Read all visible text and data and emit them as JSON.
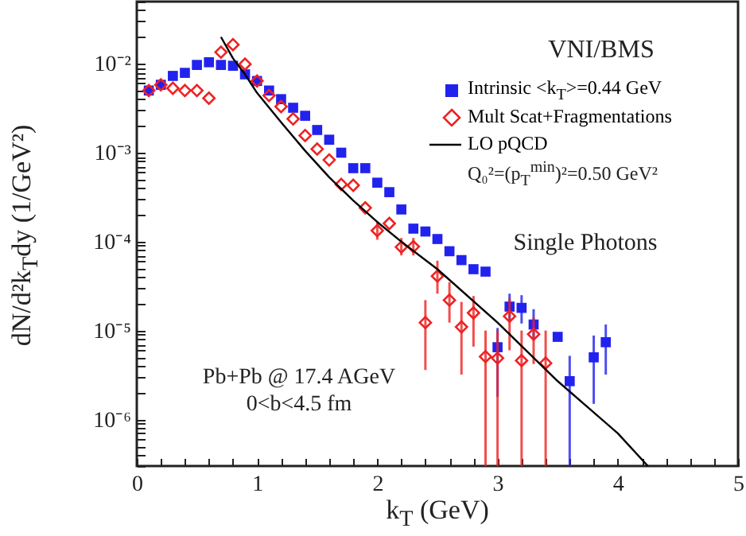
{
  "chart_data": {
    "type": "scatter",
    "xlabel": "k$_{T}$ (GeV)",
    "ylabel": "dN/d²k$_{T}$dy (1/GeV²)",
    "log": "y",
    "xlim": [
      0,
      5
    ],
    "xticks": [
      0,
      {
        "value": 0.2,
        "label": null
      },
      {
        "value": 0.4,
        "label": null
      },
      {
        "value": 0.6,
        "label": null
      },
      {
        "value": 0.8,
        "label": null
      },
      1,
      {
        "value": 1.2,
        "label": null
      },
      {
        "value": 1.4,
        "label": null
      },
      {
        "value": 1.6,
        "label": null
      },
      {
        "value": 1.8,
        "label": null
      },
      2,
      {
        "value": 2.2,
        "label": null
      },
      {
        "value": 2.4,
        "label": null
      },
      {
        "value": 2.6,
        "label": null
      },
      {
        "value": 2.8,
        "label": null
      },
      3,
      {
        "value": 3.2,
        "label": null
      },
      {
        "value": 3.4,
        "label": null
      },
      {
        "value": 3.6,
        "label": null
      },
      {
        "value": 3.8,
        "label": null
      },
      4,
      {
        "value": 4.2,
        "label": null
      },
      {
        "value": 4.4,
        "label": null
      },
      {
        "value": 4.6,
        "label": null
      },
      {
        "value": 4.8,
        "label": null
      },
      5
    ],
    "ylim": [
      3e-07,
      0.05
    ],
    "yticks": [
      {
        "value": 3e-07,
        "label": null
      },
      {
        "value": 4e-07,
        "label": null
      },
      {
        "value": 5e-07,
        "label": null
      },
      {
        "value": 6e-07,
        "label": null
      },
      {
        "value": 7e-07,
        "label": null
      },
      {
        "value": 8e-07,
        "label": null
      },
      {
        "value": 9e-07,
        "label": null
      },
      {
        "value": 1e-06,
        "label": "10⁻⁶"
      },
      {
        "value": 2e-06,
        "label": null
      },
      {
        "value": 3e-06,
        "label": null
      },
      {
        "value": 4e-06,
        "label": null
      },
      {
        "value": 5e-06,
        "label": null
      },
      {
        "value": 6e-06,
        "label": null
      },
      {
        "value": 7e-06,
        "label": null
      },
      {
        "value": 8e-06,
        "label": null
      },
      {
        "value": 9e-06,
        "label": null
      },
      {
        "value": 1e-05,
        "label": "10⁻⁵"
      },
      {
        "value": 2e-05,
        "label": null
      },
      {
        "value": 3e-05,
        "label": null
      },
      {
        "value": 4e-05,
        "label": null
      },
      {
        "value": 5e-05,
        "label": null
      },
      {
        "value": 6e-05,
        "label": null
      },
      {
        "value": 7e-05,
        "label": null
      },
      {
        "value": 8e-05,
        "label": null
      },
      {
        "value": 9e-05,
        "label": null
      },
      {
        "value": 0.0001,
        "label": "10⁻⁴"
      },
      {
        "value": 0.0002,
        "label": null
      },
      {
        "value": 0.0003,
        "label": null
      },
      {
        "value": 0.0004,
        "label": null
      },
      {
        "value": 0.0005,
        "label": null
      },
      {
        "value": 0.0006,
        "label": null
      },
      {
        "value": 0.0007,
        "label": null
      },
      {
        "value": 0.0008,
        "label": null
      },
      {
        "value": 0.0009,
        "label": null
      },
      {
        "value": 0.001,
        "label": "10⁻³"
      },
      {
        "value": 0.002,
        "label": null
      },
      {
        "value": 0.003,
        "label": null
      },
      {
        "value": 0.004,
        "label": null
      },
      {
        "value": 0.005,
        "label": null
      },
      {
        "value": 0.006,
        "label": null
      },
      {
        "value": 0.007,
        "label": null
      },
      {
        "value": 0.008,
        "label": null
      },
      {
        "value": 0.009,
        "label": null
      },
      {
        "value": 0.01,
        "label": "10⁻²"
      },
      {
        "value": 0.02,
        "label": null
      },
      {
        "value": 0.03,
        "label": null
      },
      {
        "value": 0.04,
        "label": null
      },
      {
        "value": 0.05,
        "label": null
      }
    ],
    "grid": false,
    "legend": "top right",
    "annotations": [
      "VNI/BMS",
      "Q₀²=(p$_{T}$$^{min}$)²=0.50 GeV²",
      "Single Photons",
      "Pb+Pb @ 17.4 AGeV",
      "0<b<4.5 fm"
    ],
    "series": [
      {
        "name": "Intrinsic <k$_{T}$>=0.44 GeV",
        "type": "scatter",
        "marker": "square",
        "color": "#2222ee",
        "x": [
          0.1,
          0.2,
          0.3,
          0.4,
          0.5,
          0.6,
          0.7,
          0.8,
          0.9,
          1.0,
          1.1,
          1.2,
          1.3,
          1.4,
          1.5,
          1.6,
          1.7,
          1.8,
          1.9,
          2.0,
          2.1,
          2.2,
          2.3,
          2.4,
          2.5,
          2.6,
          2.7,
          2.8,
          2.9,
          3.0,
          3.1,
          3.2,
          3.3,
          3.5,
          3.6,
          3.8,
          3.9
        ],
        "values": [
          0.005,
          0.0058,
          0.0073,
          0.0079,
          0.0097,
          0.0104,
          0.0097,
          0.0095,
          0.0076,
          0.0064,
          0.005,
          0.004,
          0.0032,
          0.0026,
          0.0018,
          0.0014,
          0.001,
          0.00067,
          0.00067,
          0.00046,
          0.00036,
          0.00023,
          0.00014,
          0.00013,
          0.000107,
          7.8e-05,
          6.2e-05,
          4.9e-05,
          4.6e-05,
          6.5e-06,
          1.86e-05,
          1.8e-05,
          1.17e-05,
          8.5e-06,
          2.7e-06,
          5e-06,
          7.4e-06
        ],
        "errors": [
          null,
          null,
          null,
          null,
          null,
          null,
          null,
          null,
          null,
          null,
          null,
          null,
          null,
          null,
          null,
          null,
          null,
          null,
          null,
          null,
          null,
          null,
          null,
          null,
          null,
          null,
          null,
          null,
          null,
          [
            1.8e-06,
            1.07e-05
          ],
          [
            1.3e-05,
            2.6e-05
          ],
          [
            1.2e-05,
            2.5e-05
          ],
          [
            8.2e-06,
            1.74e-05
          ],
          null,
          [
            3e-07,
            5.2e-06
          ],
          [
            1.5e-06,
            8.8e-06
          ],
          [
            3.2e-06,
            1.17e-05
          ]
        ]
      },
      {
        "name": "Mult Scat+Fragmentations",
        "type": "scatter",
        "marker": "diamond",
        "color": "#ee2222",
        "x": [
          0.1,
          0.2,
          0.3,
          0.4,
          0.5,
          0.6,
          0.7,
          0.8,
          0.9,
          1.0,
          1.1,
          1.2,
          1.3,
          1.4,
          1.5,
          1.6,
          1.7,
          1.8,
          1.9,
          2.0,
          2.1,
          2.2,
          2.3,
          2.4,
          2.5,
          2.6,
          2.7,
          2.8,
          2.9,
          3.0,
          3.1,
          3.2,
          3.3,
          3.4
        ],
        "values": [
          0.005,
          0.0058,
          0.0053,
          0.005,
          0.005,
          0.0041,
          0.0135,
          0.0164,
          0.0099,
          0.0064,
          0.0044,
          0.0033,
          0.0024,
          0.00156,
          0.0011,
          0.00083,
          0.00044,
          0.00043,
          0.00024,
          0.000133,
          0.00016,
          8.7e-05,
          8.8e-05,
          1.23e-05,
          4.1e-05,
          2.2e-05,
          1.1e-05,
          1.58e-05,
          5.1e-06,
          4.9e-06,
          1.45e-05,
          4.6e-06,
          9.1e-06,
          4.3e-06
        ],
        "errors": [
          null,
          null,
          null,
          null,
          null,
          null,
          null,
          null,
          null,
          null,
          null,
          null,
          null,
          null,
          null,
          null,
          null,
          null,
          null,
          [
            0.000105,
            0.00017
          ],
          null,
          [
            7e-05,
            0.00011
          ],
          [
            7e-05,
            0.00011
          ],
          [
            3.6e-06,
            2.2e-05
          ],
          [
            2.6e-05,
            6.1e-05
          ],
          [
            1.23e-05,
            3.5e-05
          ],
          [
            3.2e-06,
            2.1e-05
          ],
          [
            6.6e-06,
            2.45e-05
          ],
          [
            3e-07,
            1e-05
          ],
          [
            3e-07,
            1e-05
          ],
          [
            6e-06,
            2.3e-05
          ],
          [
            3e-07,
            1e-05
          ],
          [
            4.2e-06,
            1.4e-05
          ],
          [
            3e-07,
            1e-05
          ]
        ]
      },
      {
        "name": "LO pQCD",
        "type": "line",
        "marker": "none",
        "line_style": "solid",
        "color": "#000000",
        "x": [
          0.7,
          0.8,
          0.9,
          1.0,
          1.2,
          1.4,
          1.6,
          1.8,
          2.0,
          2.2,
          2.5,
          3.0,
          3.5,
          4.0,
          4.25
        ],
        "values": [
          0.02,
          0.0115,
          0.0076,
          0.0047,
          0.0022,
          0.00105,
          0.00053,
          0.00029,
          0.000166,
          0.0001,
          4.9e-05,
          1.23e-05,
          2.7e-06,
          7e-07,
          3e-07
        ]
      }
    ]
  }
}
